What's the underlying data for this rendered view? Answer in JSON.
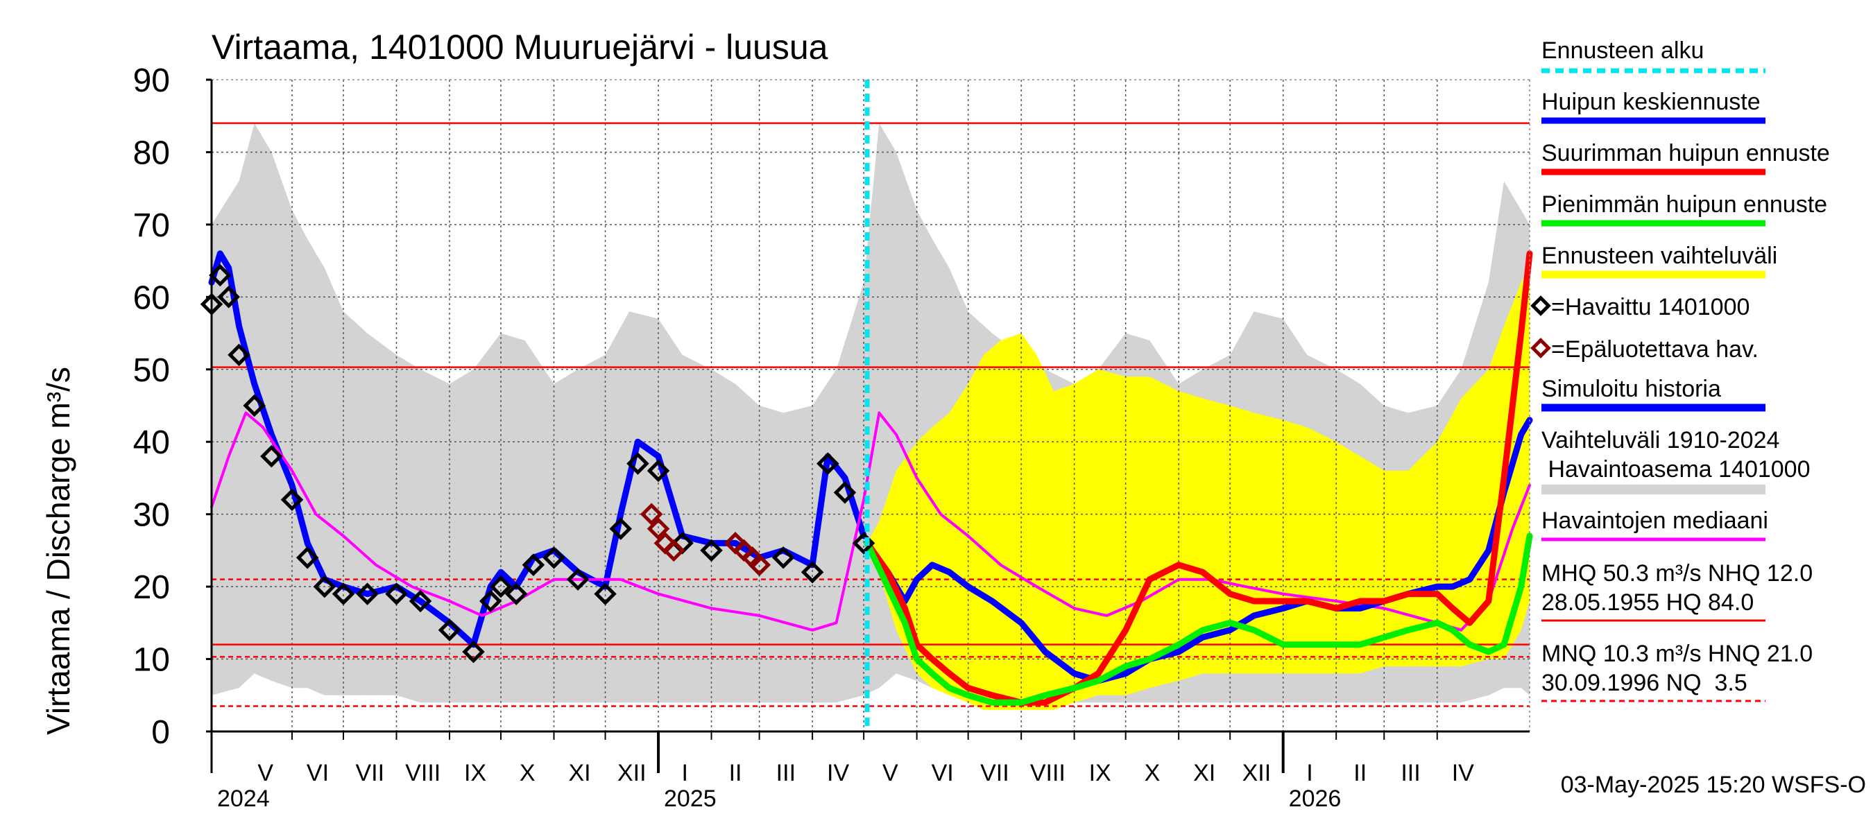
{
  "chart_data": {
    "type": "line",
    "title": "Virtaama, 1401000 Muuruejärvi - luusua",
    "ylabel": "Virtaama / Discharge    m³/s",
    "ylim": [
      0,
      90
    ],
    "yticks": [
      0,
      10,
      20,
      30,
      40,
      50,
      60,
      70,
      80,
      90
    ],
    "xdomain": [
      "2024-04-15",
      "2026-05-25"
    ],
    "forecast_start": "2025-05-03",
    "months": [
      {
        "label": "V",
        "start": "2024-05-01",
        "end": "2024-06-01"
      },
      {
        "label": "VI",
        "start": "2024-06-01",
        "end": "2024-07-01"
      },
      {
        "label": "VII",
        "start": "2024-07-01",
        "end": "2024-08-01"
      },
      {
        "label": "VIII",
        "start": "2024-08-01",
        "end": "2024-09-01"
      },
      {
        "label": "IX",
        "start": "2024-09-01",
        "end": "2024-10-01"
      },
      {
        "label": "X",
        "start": "2024-10-01",
        "end": "2024-11-01"
      },
      {
        "label": "XI",
        "start": "2024-11-01",
        "end": "2024-12-01"
      },
      {
        "label": "XII",
        "start": "2024-12-01",
        "end": "2025-01-01"
      },
      {
        "label": "I",
        "start": "2025-01-01",
        "end": "2025-02-01"
      },
      {
        "label": "II",
        "start": "2025-02-01",
        "end": "2025-03-01"
      },
      {
        "label": "III",
        "start": "2025-03-01",
        "end": "2025-04-01"
      },
      {
        "label": "IV",
        "start": "2025-04-01",
        "end": "2025-05-01"
      },
      {
        "label": "V",
        "start": "2025-05-01",
        "end": "2025-06-01"
      },
      {
        "label": "VI",
        "start": "2025-06-01",
        "end": "2025-07-01"
      },
      {
        "label": "VII",
        "start": "2025-07-01",
        "end": "2025-08-01"
      },
      {
        "label": "VIII",
        "start": "2025-08-01",
        "end": "2025-09-01"
      },
      {
        "label": "IX",
        "start": "2025-09-01",
        "end": "2025-10-01"
      },
      {
        "label": "X",
        "start": "2025-10-01",
        "end": "2025-11-01"
      },
      {
        "label": "XI",
        "start": "2025-11-01",
        "end": "2025-12-01"
      },
      {
        "label": "XII",
        "start": "2025-12-01",
        "end": "2026-01-01"
      },
      {
        "label": "I",
        "start": "2026-01-01",
        "end": "2026-02-01"
      },
      {
        "label": "II",
        "start": "2026-02-01",
        "end": "2026-03-01"
      },
      {
        "label": "III",
        "start": "2026-03-01",
        "end": "2026-04-01"
      },
      {
        "label": "IV",
        "start": "2026-04-01",
        "end": "2026-05-01"
      }
    ],
    "years": [
      {
        "label": "2024",
        "date": "2024-04-15",
        "boundary": null
      },
      {
        "label": "2025",
        "date": "2025-01-01",
        "boundary": "2025-01-01"
      },
      {
        "label": "2026",
        "date": "2026-01-01",
        "boundary": "2026-01-01"
      }
    ],
    "reference_lines": [
      {
        "name": "HQ",
        "value": 84.0,
        "style": "solid"
      },
      {
        "name": "MHQ",
        "value": 50.3,
        "style": "solid"
      },
      {
        "name": "HNQ",
        "value": 21.0,
        "style": "dashed"
      },
      {
        "name": "NHQ",
        "value": 12.0,
        "style": "solid"
      },
      {
        "name": "MNQ",
        "value": 10.3,
        "style": "dashed"
      },
      {
        "name": "NQ",
        "value": 3.5,
        "style": "dashed"
      }
    ],
    "historical_range": {
      "name": "Vaihteluväli 1910-2024 Havaintoasema 1401000",
      "color": "#d3d3d3",
      "x": [
        "2024-04-15",
        "2024-05-01",
        "2024-05-10",
        "2024-05-20",
        "2024-06-01",
        "2024-06-10",
        "2024-06-20",
        "2024-07-01",
        "2024-07-15",
        "2024-08-01",
        "2024-08-15",
        "2024-09-01",
        "2024-09-15",
        "2024-10-01",
        "2024-10-15",
        "2024-11-01",
        "2024-11-15",
        "2024-12-01",
        "2024-12-15",
        "2025-01-01",
        "2025-01-15",
        "2025-02-01",
        "2025-02-15",
        "2025-03-01",
        "2025-03-15",
        "2025-04-01",
        "2025-04-15",
        "2025-05-01",
        "2025-05-10",
        "2025-05-20",
        "2025-06-01",
        "2025-06-10",
        "2025-06-20",
        "2025-07-01",
        "2025-07-15",
        "2025-08-01",
        "2025-08-15",
        "2025-09-01",
        "2025-09-15",
        "2025-10-01",
        "2025-10-15",
        "2025-11-01",
        "2025-11-15",
        "2025-12-01",
        "2025-12-15",
        "2026-01-01",
        "2026-01-15",
        "2026-02-01",
        "2026-02-15",
        "2026-03-01",
        "2026-03-15",
        "2026-04-01",
        "2026-04-15",
        "2026-05-01",
        "2026-05-10",
        "2026-05-20",
        "2026-05-25"
      ],
      "upper": [
        70,
        76,
        84,
        80,
        72,
        68,
        64,
        58,
        55,
        52,
        50,
        48,
        50,
        55,
        54,
        48,
        50,
        52,
        58,
        57,
        52,
        50,
        48,
        45,
        44,
        45,
        50,
        62,
        84,
        80,
        72,
        68,
        64,
        58,
        55,
        52,
        50,
        48,
        50,
        55,
        54,
        48,
        50,
        52,
        58,
        57,
        52,
        50,
        48,
        45,
        44,
        45,
        50,
        62,
        76,
        72,
        70
      ],
      "lower": [
        5,
        6,
        8,
        7,
        6,
        6,
        5,
        5,
        5,
        5,
        4,
        4,
        4,
        4,
        4,
        4,
        4,
        4,
        4,
        4,
        4,
        4,
        4,
        4,
        4,
        4,
        4,
        5,
        6,
        8,
        7,
        6,
        6,
        5,
        5,
        5,
        5,
        4,
        4,
        4,
        4,
        4,
        4,
        4,
        4,
        4,
        4,
        4,
        4,
        4,
        4,
        4,
        4,
        5,
        6,
        6,
        5
      ]
    },
    "forecast_range": {
      "name": "Ennusteen vaihteluväli",
      "color": "#ffff00",
      "x": [
        "2025-05-03",
        "2025-05-10",
        "2025-05-20",
        "2025-06-01",
        "2025-06-10",
        "2025-06-20",
        "2025-07-01",
        "2025-07-10",
        "2025-07-20",
        "2025-08-01",
        "2025-08-10",
        "2025-08-20",
        "2025-09-01",
        "2025-09-15",
        "2025-10-01",
        "2025-10-15",
        "2025-11-01",
        "2025-11-15",
        "2025-12-01",
        "2025-12-15",
        "2026-01-01",
        "2026-01-15",
        "2026-02-01",
        "2026-02-15",
        "2026-03-01",
        "2026-03-15",
        "2026-04-01",
        "2026-04-15",
        "2026-05-01",
        "2026-05-10",
        "2026-05-20",
        "2026-05-25"
      ],
      "upper": [
        26,
        29,
        36,
        40,
        42,
        44,
        48,
        52,
        54,
        55,
        52,
        47,
        48,
        50,
        49,
        49,
        47,
        46,
        45,
        44,
        43,
        42,
        40,
        38,
        36,
        36,
        40,
        46,
        50,
        56,
        62,
        64
      ],
      "lower": [
        25,
        22,
        14,
        8,
        6,
        5,
        4,
        3,
        3,
        3,
        3,
        3,
        4,
        5,
        5,
        6,
        7,
        8,
        8,
        8,
        8,
        8,
        8,
        8,
        9,
        9,
        9,
        9,
        10,
        10,
        14,
        18
      ]
    },
    "series": [
      {
        "name": "Simuloitu historia",
        "color": "#0000ff",
        "x": [
          "2024-04-15",
          "2024-04-20",
          "2024-04-25",
          "2024-05-01",
          "2024-05-10",
          "2024-05-20",
          "2024-06-01",
          "2024-06-10",
          "2024-06-20",
          "2024-07-01",
          "2024-07-15",
          "2024-08-01",
          "2024-08-15",
          "2024-09-01",
          "2024-09-15",
          "2024-09-25",
          "2024-10-01",
          "2024-10-10",
          "2024-10-20",
          "2024-11-01",
          "2024-11-15",
          "2024-12-01",
          "2024-12-10",
          "2024-12-20",
          "2025-01-01",
          "2025-01-15",
          "2025-02-01",
          "2025-02-15",
          "2025-03-01",
          "2025-03-15",
          "2025-04-01",
          "2025-04-10",
          "2025-04-20",
          "2025-05-01"
        ],
        "y": [
          62,
          66,
          64,
          56,
          48,
          41,
          34,
          26,
          21,
          20,
          19,
          20,
          18,
          15,
          12,
          20,
          22,
          20,
          24,
          25,
          22,
          20,
          30,
          40,
          38,
          27,
          26,
          26,
          24,
          25,
          23,
          38,
          35,
          27
        ]
      },
      {
        "name": "Havaittu 1401000",
        "color": "#000000",
        "x": [
          "2024-04-15",
          "2024-04-20",
          "2024-04-25",
          "2024-05-01",
          "2024-05-10",
          "2024-05-20",
          "2024-06-01",
          "2024-06-10",
          "2024-06-20",
          "2024-07-01",
          "2024-07-15",
          "2024-08-01",
          "2024-08-15",
          "2024-09-01",
          "2024-09-15",
          "2024-09-25",
          "2024-10-01",
          "2024-10-10",
          "2024-10-20",
          "2024-11-01",
          "2024-11-15",
          "2024-12-01",
          "2024-12-10",
          "2024-12-20",
          "2025-01-01",
          "2025-01-15",
          "2025-02-01",
          "2025-02-15",
          "2025-03-01",
          "2025-03-15",
          "2025-04-01",
          "2025-04-10",
          "2025-04-20",
          "2025-05-01"
        ],
        "y": [
          59,
          63,
          60,
          52,
          45,
          38,
          32,
          24,
          20,
          19,
          19,
          19,
          18,
          14,
          11,
          18,
          20,
          19,
          23,
          24,
          21,
          19,
          28,
          37,
          36,
          26,
          25,
          26,
          23,
          24,
          22,
          37,
          33,
          26
        ]
      },
      {
        "name": "Epäluotettava hav.",
        "color": "#8b0000",
        "x": [
          "2024-12-28",
          "2025-01-01",
          "2025-01-05",
          "2025-01-10",
          "2025-02-15",
          "2025-02-20",
          "2025-02-25",
          "2025-03-01"
        ],
        "y": [
          30,
          28,
          26,
          25,
          26,
          25,
          24,
          23
        ]
      },
      {
        "name": "Havaintojen mediaani",
        "color": "#ff00ff",
        "x": [
          "2024-04-15",
          "2024-04-25",
          "2024-05-05",
          "2024-05-15",
          "2024-06-01",
          "2024-06-15",
          "2024-07-01",
          "2024-07-20",
          "2024-08-10",
          "2024-09-01",
          "2024-09-20",
          "2024-10-10",
          "2024-11-01",
          "2024-11-20",
          "2024-12-10",
          "2025-01-01",
          "2025-02-01",
          "2025-03-01",
          "2025-04-01",
          "2025-04-15",
          "2025-05-01",
          "2025-05-10",
          "2025-05-20",
          "2025-06-01",
          "2025-06-15",
          "2025-07-01",
          "2025-07-20",
          "2025-08-10",
          "2025-09-01",
          "2025-09-20",
          "2025-10-10",
          "2025-11-01",
          "2025-11-20",
          "2025-12-10",
          "2026-01-01",
          "2026-02-01",
          "2026-03-01",
          "2026-04-01",
          "2026-04-15",
          "2026-05-01",
          "2026-05-15",
          "2026-05-25"
        ],
        "y": [
          31,
          38,
          44,
          42,
          36,
          30,
          27,
          23,
          20,
          18,
          16,
          18,
          21,
          21,
          21,
          19,
          17,
          16,
          14,
          15,
          32,
          44,
          41,
          35,
          30,
          27,
          23,
          20,
          17,
          16,
          18,
          21,
          21,
          20,
          19,
          18,
          17,
          15,
          14,
          18,
          28,
          34
        ]
      },
      {
        "name": "Huipun keskiennuste",
        "color": "#0000ff",
        "x": [
          "2025-05-03",
          "2025-05-15",
          "2025-05-25",
          "2025-06-01",
          "2025-06-10",
          "2025-06-20",
          "2025-07-01",
          "2025-07-15",
          "2025-08-01",
          "2025-08-15",
          "2025-09-01",
          "2025-09-15",
          "2025-10-01",
          "2025-10-15",
          "2025-11-01",
          "2025-11-15",
          "2025-12-01",
          "2025-12-15",
          "2026-01-01",
          "2026-01-15",
          "2026-02-01",
          "2026-02-15",
          "2026-03-01",
          "2026-03-15",
          "2026-04-01",
          "2026-04-10",
          "2026-04-20",
          "2026-05-01",
          "2026-05-10",
          "2026-05-20",
          "2026-05-25"
        ],
        "y": [
          26,
          22,
          18,
          21,
          23,
          22,
          20,
          18,
          15,
          11,
          8,
          7,
          8,
          10,
          11,
          13,
          14,
          16,
          17,
          18,
          17,
          17,
          18,
          19,
          20,
          20,
          21,
          25,
          33,
          41,
          43
        ]
      },
      {
        "name": "Suurimman huipun ennuste",
        "color": "#ff0000",
        "x": [
          "2025-05-03",
          "2025-05-15",
          "2025-05-25",
          "2025-06-01",
          "2025-06-10",
          "2025-06-20",
          "2025-07-01",
          "2025-07-15",
          "2025-08-01",
          "2025-08-15",
          "2025-09-01",
          "2025-09-15",
          "2025-10-01",
          "2025-10-15",
          "2025-11-01",
          "2025-11-15",
          "2025-12-01",
          "2025-12-15",
          "2026-01-01",
          "2026-01-15",
          "2026-02-01",
          "2026-02-15",
          "2026-03-01",
          "2026-03-15",
          "2026-04-01",
          "2026-04-10",
          "2026-04-20",
          "2026-05-01",
          "2026-05-10",
          "2026-05-20",
          "2026-05-25"
        ],
        "y": [
          26,
          22,
          17,
          12,
          10,
          8,
          6,
          5,
          4,
          4,
          6,
          8,
          14,
          21,
          23,
          22,
          19,
          18,
          18,
          18,
          17,
          18,
          18,
          19,
          19,
          17,
          15,
          18,
          35,
          55,
          66
        ]
      },
      {
        "name": "Pienimmän huipun ennuste",
        "color": "#00ee00",
        "x": [
          "2025-05-03",
          "2025-05-15",
          "2025-05-25",
          "2025-06-01",
          "2025-06-10",
          "2025-06-20",
          "2025-07-01",
          "2025-07-15",
          "2025-08-01",
          "2025-08-15",
          "2025-09-01",
          "2025-09-15",
          "2025-10-01",
          "2025-10-15",
          "2025-11-01",
          "2025-11-15",
          "2025-12-01",
          "2025-12-15",
          "2026-01-01",
          "2026-01-15",
          "2026-02-01",
          "2026-02-15",
          "2026-03-01",
          "2026-03-15",
          "2026-04-01",
          "2026-04-10",
          "2026-04-20",
          "2026-05-01",
          "2026-05-10",
          "2026-05-20",
          "2026-05-25"
        ],
        "y": [
          26,
          20,
          15,
          10,
          8,
          6,
          5,
          4,
          4,
          5,
          6,
          7,
          9,
          10,
          12,
          14,
          15,
          14,
          12,
          12,
          12,
          12,
          13,
          14,
          15,
          14,
          12,
          11,
          12,
          20,
          27
        ]
      }
    ],
    "legend": {
      "forecast_start": "Ennusteen alku",
      "mean_peak": "Huipun keskiennuste",
      "max_peak": "Suurimman huipun ennuste",
      "min_peak": "Pienimmän huipun ennuste",
      "forecast_range": "Ennusteen vaihteluväli",
      "observed": "=Havaittu 1401000",
      "unreliable": "=Epäluotettava hav.",
      "simulated": "Simuloitu historia",
      "hist_range_1": "Vaihteluväli 1910-2024",
      "hist_range_2": " Havaintoasema 1401000",
      "median": "Havaintojen mediaani",
      "stats_1": "MHQ 50.3 m³/s NHQ 12.0",
      "stats_2": "28.05.1955 HQ 84.0",
      "stats_3": "MNQ 10.3 m³/s HNQ 21.0",
      "stats_4": "30.09.1996 NQ  3.5"
    },
    "footer": "03-May-2025 15:20 WSFS-O"
  }
}
